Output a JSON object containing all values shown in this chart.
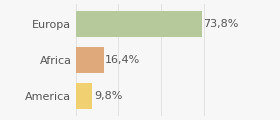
{
  "categories": [
    "Europa",
    "Africa",
    "America"
  ],
  "values": [
    73.8,
    16.4,
    9.8
  ],
  "labels": [
    "73,8%",
    "16,4%",
    "9,8%"
  ],
  "bar_colors": [
    "#b5c99a",
    "#e0a97c",
    "#f0d070"
  ],
  "xlim": [
    0,
    100
  ],
  "background_color": "#f7f7f7",
  "bar_height": 0.72,
  "label_fontsize": 8.0,
  "tick_fontsize": 8.0,
  "grid_color": "#dddddd",
  "text_color": "#555555"
}
